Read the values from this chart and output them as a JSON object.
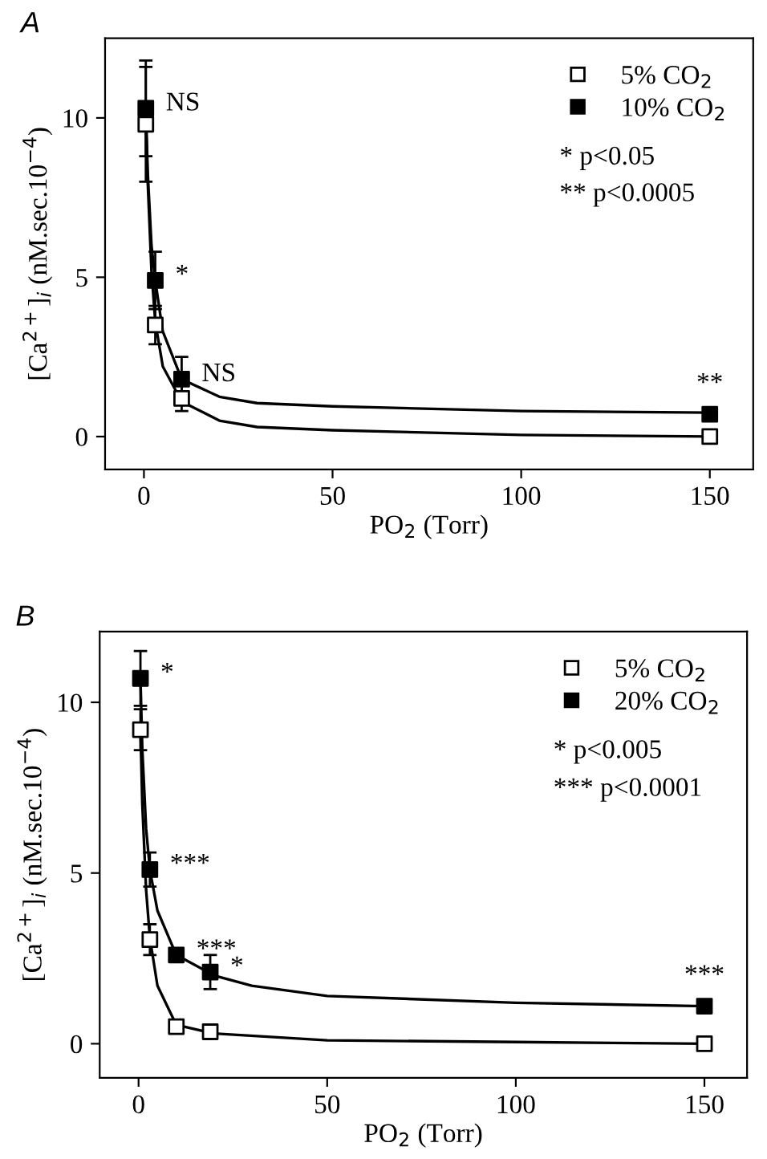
{
  "chart_data": [
    {
      "type": "scatter",
      "title": "A",
      "xlabel": "PO$_{2}$ (Torr)",
      "ylabel": "[Ca$^{2+}$]$_{i}$ (nM.sec.10$^{−4}$)",
      "xlim": [
        -10.3,
        161.5
      ],
      "ylim": [
        -1.03,
        12.5
      ],
      "xticks": [
        0,
        50,
        100,
        150
      ],
      "yticks": [
        0,
        5,
        10
      ],
      "grid": false,
      "legend": "top right",
      "marker": "square",
      "series": [
        {
          "name": "5% CO$_{2}$",
          "color": "#ffffff",
          "x": [
            0.5,
            3,
            10,
            150
          ],
          "values": [
            9.8,
            3.5,
            1.2,
            0
          ],
          "errors": [
            1.8,
            0.6,
            0.4,
            null
          ]
        },
        {
          "name": "10% CO$_{2}$",
          "color": "#000000",
          "x": [
            0.5,
            3,
            10,
            150
          ],
          "values": [
            10.3,
            4.9,
            1.8,
            0.7
          ],
          "errors": [
            1.5,
            0.9,
            0.7,
            null
          ]
        },
        {
          "type": "line",
          "color": "#000000",
          "marker": "none",
          "x": [
            0.5,
            1,
            2,
            3,
            5,
            10,
            20,
            30,
            50,
            100,
            150
          ],
          "values": [
            10,
            8,
            5.2,
            3.6,
            2.2,
            1.1,
            0.5,
            0.3,
            0.2,
            0.05,
            0
          ]
        },
        {
          "type": "line",
          "color": "#000000",
          "marker": "none",
          "x": [
            0.5,
            1,
            2,
            3,
            5,
            10,
            20,
            30,
            50,
            100,
            150
          ],
          "values": [
            10.4,
            8.3,
            6,
            4.9,
            3.3,
            1.8,
            1.25,
            1.05,
            0.95,
            0.8,
            0.75
          ]
        }
      ],
      "annotations": [
        {
          "text": "NS",
          "x": 0.5,
          "y": 10.3
        },
        {
          "text": "*",
          "x": 3,
          "y": 4.9
        },
        {
          "text": "NS",
          "x": 10,
          "y": 1.8
        },
        {
          "text": "**",
          "x": 150,
          "y": 0.7
        },
        "* p<0.05",
        "** p<0.0005"
      ]
    },
    {
      "type": "scatter",
      "title": "B",
      "xlabel": "PO$_{2}$ (Torr)",
      "ylabel": "[Ca$^{2+}$]$_{i}$ (nM.sec.10$^{−4}$)",
      "xlim": [
        -10.3,
        161.3
      ],
      "ylim": [
        -1.0,
        12.07
      ],
      "xticks": [
        0,
        50,
        100,
        150
      ],
      "yticks": [
        0,
        5,
        10
      ],
      "grid": false,
      "legend": "top right",
      "marker": "square",
      "series": [
        {
          "name": "5% CO$_{2}$",
          "color": "#ffffff",
          "x": [
            0.5,
            3,
            10,
            19,
            150
          ],
          "values": [
            9.2,
            3.05,
            0.5,
            0.35,
            0
          ],
          "errors": [
            0.6,
            0.45,
            null,
            null,
            null
          ]
        },
        {
          "name": "20% CO$_{2}$",
          "color": "#000000",
          "x": [
            0.5,
            3,
            10,
            19,
            150
          ],
          "values": [
            10.7,
            5.1,
            2.6,
            2.1,
            1.1
          ],
          "errors": [
            0.8,
            0.5,
            0.2,
            0.5,
            null
          ]
        },
        {
          "type": "line",
          "color": "#000000",
          "marker": "none",
          "x": [
            0.5,
            1,
            2,
            3,
            5,
            10,
            20,
            50,
            100,
            150
          ],
          "values": [
            9.2,
            7,
            4.5,
            3.1,
            1.7,
            0.55,
            0.3,
            0.1,
            0.05,
            0
          ]
        },
        {
          "type": "line",
          "color": "#000000",
          "marker": "none",
          "x": [
            0.5,
            1,
            2,
            3,
            5,
            10,
            20,
            30,
            50,
            100,
            150
          ],
          "values": [
            10.7,
            8.6,
            6.3,
            5.1,
            3.9,
            2.6,
            2,
            1.7,
            1.4,
            1.2,
            1.1
          ]
        }
      ],
      "annotations": [
        {
          "text": "*",
          "x": 0.5,
          "y": 10.7
        },
        {
          "text": "***",
          "x": 3,
          "y": 5.1
        },
        {
          "text": "***",
          "x": 10,
          "y": 2.6
        },
        {
          "text": "*",
          "x": 19,
          "y": 2.1
        },
        {
          "text": "***",
          "x": 150,
          "y": 1.1
        },
        "* p<0.005",
        "*** p<0.0001"
      ]
    }
  ]
}
